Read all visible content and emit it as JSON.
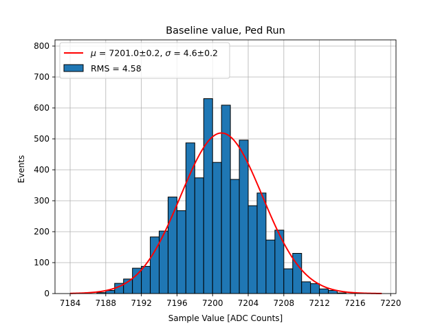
{
  "chart_data": {
    "type": "bar",
    "title": "Baseline value, Ped Run",
    "xlabel": "Sample Value [ADC Counts]",
    "ylabel": "Events",
    "xlim": [
      7182.3,
      7220.6
    ],
    "ylim": [
      0,
      820
    ],
    "xticks": [
      7184,
      7188,
      7192,
      7196,
      7200,
      7204,
      7208,
      7212,
      7216,
      7220
    ],
    "yticks": [
      0,
      100,
      200,
      300,
      400,
      500,
      600,
      700,
      800
    ],
    "grid": true,
    "legend_position": "top-left",
    "histogram": {
      "name": "RMS = 4.58",
      "color": "#1f77b4",
      "edgecolor": "#000000",
      "bin_edges": [
        7187,
        7188,
        7189,
        7190,
        7191,
        7192,
        7193,
        7194,
        7195,
        7196,
        7197,
        7198,
        7199,
        7200,
        7201,
        7202,
        7203,
        7204,
        7205,
        7206,
        7207,
        7208,
        7209,
        7210,
        7211,
        7212,
        7213,
        7214,
        7215
      ],
      "values": [
        3,
        10,
        33,
        47,
        82,
        88,
        183,
        202,
        312,
        268,
        487,
        374,
        630,
        424,
        609,
        369,
        496,
        284,
        325,
        173,
        205,
        80,
        130,
        38,
        32,
        15,
        10,
        2
      ]
    },
    "fit": {
      "name": "$\\mu = 7201.0 \\pm 0.2$, $\\sigma = 4.6 \\pm 0.2$",
      "label_mu": "μ",
      "label_mid": " = 7201.0±0.2, ",
      "label_sigma": "σ",
      "label_end": " = 4.6±0.2",
      "color": "#ff0000",
      "mu": 7201.0,
      "sigma": 4.6,
      "amplitude": 519,
      "x_range": [
        7184,
        7219
      ]
    }
  }
}
